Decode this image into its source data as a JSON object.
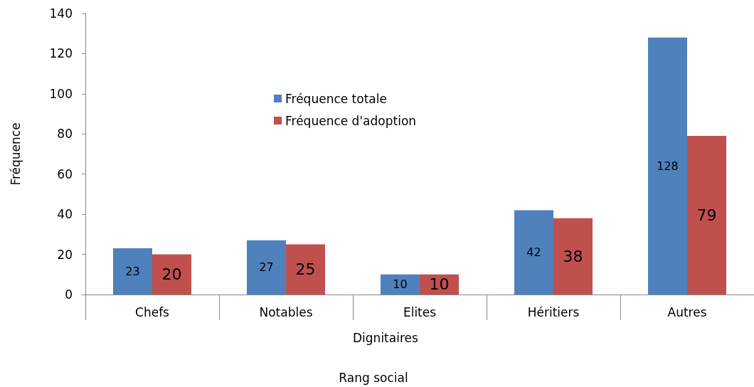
{
  "chart_data": {
    "type": "bar",
    "xlabel": "Rang social",
    "ylabel": "Fréquence",
    "categories": [
      "Chefs",
      "Notables",
      "Elites",
      "Héritiers",
      "Autres"
    ],
    "series": [
      {
        "name": "Fréquence totale",
        "color": "#4f81bd",
        "values": [
          23,
          27,
          10,
          42,
          128
        ]
      },
      {
        "name": "Fréquence d'adoption",
        "color": "#c0504d",
        "values": [
          20,
          25,
          10,
          38,
          79
        ]
      }
    ],
    "ylim": [
      0,
      140
    ],
    "yticks": [
      0,
      20,
      40,
      60,
      80,
      100,
      120,
      140
    ],
    "grid": false,
    "legend": "top",
    "data_labels": true,
    "annotations": [
      "Dignitaires"
    ]
  }
}
